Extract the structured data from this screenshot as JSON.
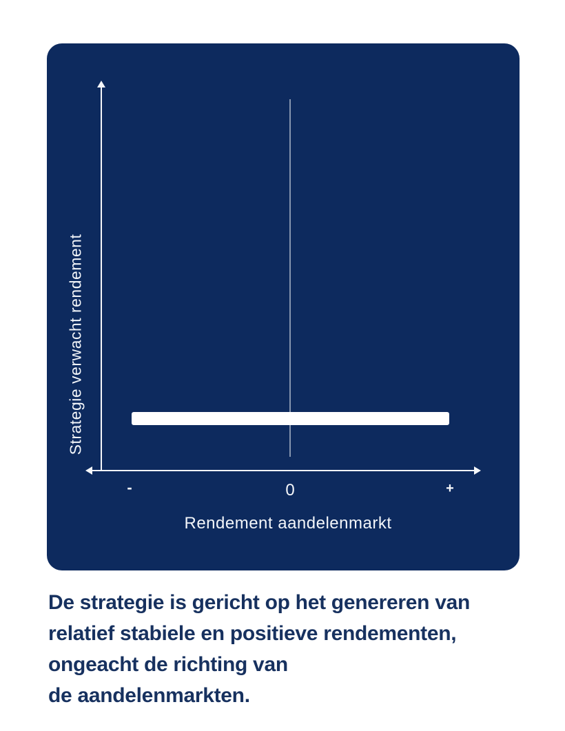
{
  "chart": {
    "y_axis_label": "Strategie verwacht rendement",
    "x_axis_label": "Rendement aandelenmarkt",
    "ticks": {
      "minus": "-",
      "zero": "0",
      "plus": "+"
    }
  },
  "caption": {
    "lines": [
      "De strategie is gericht op het genereren van",
      "relatief stabiele en positieve rendementen,",
      "ongeacht de richting van",
      "de aandelenmarkten."
    ]
  },
  "colors": {
    "page_background": "#ffffff",
    "card_background": "#0d2a5e",
    "axis": "#f5f7fa",
    "bar": "#ffffff",
    "zero_line": "rgba(255,255,255,0.5)",
    "caption_text": "#17315f"
  },
  "chart_data": {
    "type": "line",
    "title": "",
    "xlabel": "Rendement aandelenmarkt",
    "ylabel": "Strategie verwacht rendement",
    "x_tick_labels": [
      "-",
      "0",
      "+"
    ],
    "x_range": [
      -1,
      1
    ],
    "y_range": [
      0,
      1
    ],
    "grid": false,
    "legend": false,
    "series": [
      {
        "name": "Strategie verwacht rendement",
        "x": [
          -0.84,
          0.84
        ],
        "values": [
          0.13,
          0.13
        ],
        "style": "thick-white-bar",
        "note": "flat constant positive expected return regardless of equity market direction"
      }
    ],
    "annotations": [
      "vertical reference line at x = 0 spanning most of plot height"
    ]
  }
}
